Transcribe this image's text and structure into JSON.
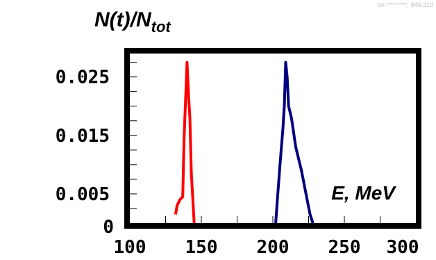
{
  "stamp": "tm=********, 846.310",
  "chart_data": {
    "type": "line",
    "ylabel_main": "N(t)/N",
    "ylabel_sub": "tot",
    "xlabel": "E, MeV",
    "xlim": [
      100,
      300
    ],
    "ylim": [
      0,
      0.029
    ],
    "x_ticks": [
      100,
      150,
      200,
      250,
      300
    ],
    "x_tick_labels": [
      "100",
      "150",
      "200",
      "250",
      "300"
    ],
    "y_ticks": [
      0,
      0.005,
      0.015,
      0.025
    ],
    "y_tick_labels": [
      "0",
      "0.005",
      "0.015",
      "0.025"
    ],
    "grid": false,
    "series": [
      {
        "color": "#ff0000",
        "x": [
          132,
          133,
          135,
          137,
          138,
          139,
          140,
          141,
          142,
          143,
          145
        ],
        "y": [
          0.0015,
          0.003,
          0.004,
          0.0045,
          0.015,
          0.021,
          0.0275,
          0.022,
          0.018,
          0.0085,
          0.0
        ]
      },
      {
        "color": "#000080",
        "x": [
          202,
          203,
          205,
          207,
          208,
          209,
          210,
          211,
          213,
          216,
          220,
          224,
          226,
          228
        ],
        "y": [
          0.0,
          0.0035,
          0.01,
          0.016,
          0.02,
          0.0275,
          0.025,
          0.02,
          0.018,
          0.013,
          0.009,
          0.004,
          0.0015,
          0.0
        ]
      }
    ]
  }
}
